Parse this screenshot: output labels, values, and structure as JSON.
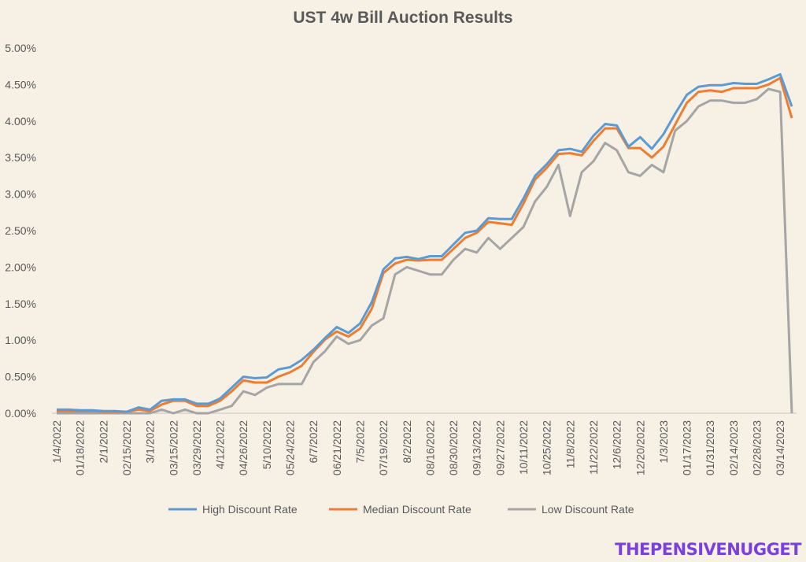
{
  "chart_data": {
    "type": "line",
    "title": "UST 4w Bill Auction Results",
    "ylim": [
      0,
      5
    ],
    "y_ticks": [
      "0.00%",
      "0.50%",
      "1.00%",
      "1.50%",
      "2.00%",
      "2.50%",
      "3.00%",
      "3.50%",
      "4.00%",
      "4.50%",
      "5.00%"
    ],
    "x_tick_labels": [
      "1/4/2022",
      "01/18/2022",
      "2/1/2022",
      "02/15/2022",
      "3/1/2022",
      "03/15/2022",
      "03/29/2022",
      "4/12/2022",
      "04/26/2022",
      "5/10/2022",
      "05/24/2022",
      "6/7/2022",
      "06/21/2022",
      "7/5/2022",
      "07/19/2022",
      "8/2/2022",
      "08/16/2022",
      "08/30/2022",
      "09/13/2022",
      "09/27/2022",
      "10/11/2022",
      "10/25/2022",
      "11/8/2022",
      "11/22/2022",
      "12/6/2022",
      "12/20/2022",
      "1/3/2023",
      "01/17/2023",
      "01/31/2023",
      "02/14/2023",
      "02/28/2023",
      "03/14/2023"
    ],
    "series": [
      {
        "name": "High Discount Rate",
        "color": "#5b9bd5",
        "values": [
          0.05,
          0.05,
          0.04,
          0.04,
          0.03,
          0.03,
          0.02,
          0.08,
          0.05,
          0.17,
          0.19,
          0.19,
          0.13,
          0.13,
          0.2,
          0.35,
          0.5,
          0.48,
          0.49,
          0.6,
          0.63,
          0.73,
          0.87,
          1.03,
          1.18,
          1.1,
          1.23,
          1.52,
          1.97,
          2.12,
          2.14,
          2.11,
          2.15,
          2.15,
          2.31,
          2.47,
          2.5,
          2.67,
          2.66,
          2.66,
          2.94,
          3.25,
          3.41,
          3.6,
          3.62,
          3.58,
          3.8,
          3.96,
          3.94,
          3.65,
          3.78,
          3.62,
          3.82,
          4.1,
          4.36,
          4.47,
          4.49,
          4.49,
          4.52,
          4.51,
          4.51,
          4.57,
          4.64,
          4.2
        ]
      },
      {
        "name": "Median Discount Rate",
        "color": "#ed7d31",
        "values": [
          0.03,
          0.03,
          0.03,
          0.03,
          0.02,
          0.02,
          0.02,
          0.05,
          0.03,
          0.12,
          0.17,
          0.17,
          0.1,
          0.1,
          0.17,
          0.3,
          0.45,
          0.42,
          0.42,
          0.5,
          0.56,
          0.65,
          0.84,
          1.01,
          1.12,
          1.05,
          1.16,
          1.43,
          1.92,
          2.05,
          2.1,
          2.09,
          2.1,
          2.1,
          2.25,
          2.4,
          2.47,
          2.62,
          2.6,
          2.58,
          2.87,
          3.2,
          3.36,
          3.55,
          3.56,
          3.53,
          3.73,
          3.9,
          3.9,
          3.63,
          3.63,
          3.5,
          3.65,
          3.95,
          4.25,
          4.4,
          4.42,
          4.4,
          4.45,
          4.45,
          4.45,
          4.5,
          4.59,
          4.04
        ]
      },
      {
        "name": "Low Discount Rate",
        "color": "#a5a5a5",
        "values": [
          0.0,
          0.0,
          0.0,
          0.0,
          0.0,
          0.0,
          0.0,
          0.0,
          0.0,
          0.05,
          0.0,
          0.05,
          0.0,
          0.0,
          0.05,
          0.1,
          0.3,
          0.25,
          0.35,
          0.4,
          0.4,
          0.4,
          0.7,
          0.85,
          1.05,
          0.95,
          1.0,
          1.2,
          1.3,
          1.9,
          2.0,
          1.95,
          1.9,
          1.9,
          2.1,
          2.25,
          2.2,
          2.4,
          2.25,
          2.4,
          2.55,
          2.9,
          3.1,
          3.4,
          2.7,
          3.3,
          3.45,
          3.7,
          3.6,
          3.3,
          3.25,
          3.4,
          3.3,
          3.87,
          4.0,
          4.2,
          4.28,
          4.28,
          4.25,
          4.25,
          4.3,
          4.44,
          4.4,
          0.0
        ]
      }
    ]
  },
  "watermark": "THEPENSIVENUGGET"
}
